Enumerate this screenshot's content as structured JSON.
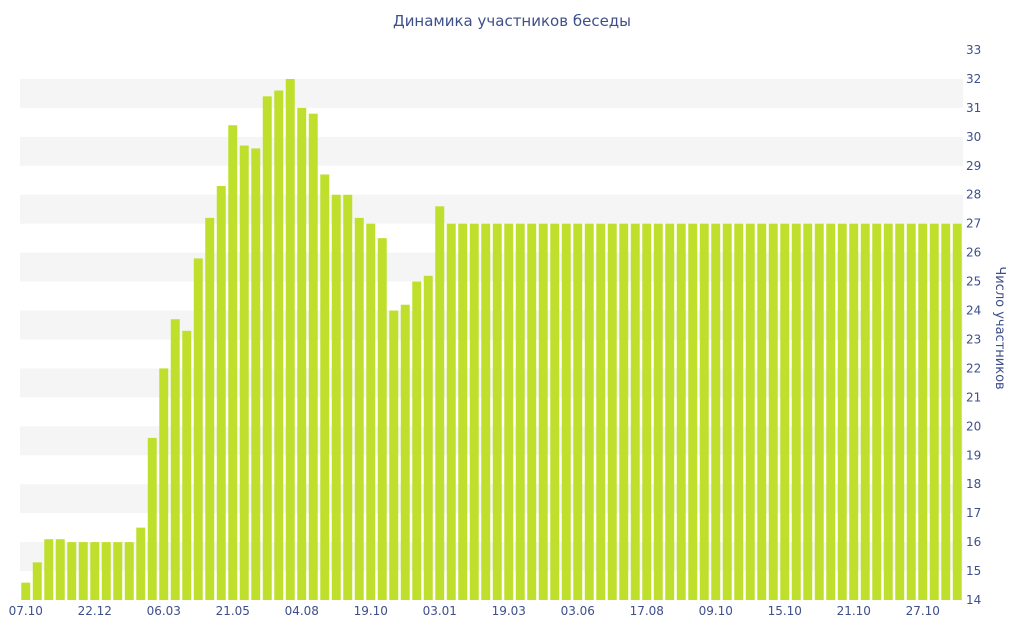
{
  "chart_data": {
    "type": "bar",
    "title": "Динамика участников беседы",
    "ylabel": "Число участников",
    "xlabel": "",
    "ylim": [
      14,
      33
    ],
    "yticks": [
      14,
      15,
      16,
      17,
      18,
      19,
      20,
      21,
      22,
      23,
      24,
      25,
      26,
      27,
      28,
      29,
      30,
      31,
      32,
      33
    ],
    "y_axis_position": "right",
    "grid": "alternating horizontal bands",
    "legend": "none",
    "colors": {
      "bar": "#bedf2c",
      "band": "#f5f5f5",
      "text": "#3e4f8a"
    },
    "x_tick_labels": [
      {
        "index": 0,
        "label": "07.10"
      },
      {
        "index": 6,
        "label": "22.12"
      },
      {
        "index": 12,
        "label": "06.03"
      },
      {
        "index": 18,
        "label": "21.05"
      },
      {
        "index": 24,
        "label": "04.08"
      },
      {
        "index": 30,
        "label": "19.10"
      },
      {
        "index": 36,
        "label": "03.01"
      },
      {
        "index": 42,
        "label": "19.03"
      },
      {
        "index": 48,
        "label": "03.06"
      },
      {
        "index": 54,
        "label": "17.08"
      },
      {
        "index": 60,
        "label": "09.10"
      },
      {
        "index": 66,
        "label": "15.10"
      },
      {
        "index": 72,
        "label": "21.10"
      },
      {
        "index": 78,
        "label": "27.10"
      }
    ],
    "values": [
      14.6,
      15.3,
      16.1,
      16.1,
      16,
      16,
      16,
      16,
      16,
      16,
      16.5,
      19.6,
      22,
      23.7,
      23.3,
      25.8,
      27.2,
      28.3,
      30.4,
      29.7,
      29.6,
      31.4,
      31.6,
      32,
      31,
      30.8,
      28.7,
      28,
      28,
      27.2,
      27,
      26.5,
      24,
      24.2,
      25,
      25.2,
      27.6,
      27,
      27,
      27,
      27,
      27,
      27,
      27,
      27,
      27,
      27,
      27,
      27,
      27,
      27,
      27,
      27,
      27,
      27,
      27,
      27,
      27,
      27,
      27,
      27,
      27,
      27,
      27,
      27,
      27,
      27,
      27,
      27,
      27,
      27,
      27,
      27,
      27,
      27,
      27,
      27,
      27,
      27,
      27,
      27,
      27
    ]
  }
}
